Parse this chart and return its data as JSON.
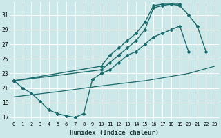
{
  "xlabel": "Humidex (Indice chaleur)",
  "xlim": [
    -0.5,
    23.5
  ],
  "ylim": [
    16.5,
    32.8
  ],
  "yticks": [
    17,
    19,
    21,
    23,
    25,
    27,
    29,
    31
  ],
  "xticks": [
    0,
    1,
    2,
    3,
    4,
    5,
    6,
    7,
    8,
    9,
    10,
    11,
    12,
    13,
    14,
    15,
    16,
    17,
    18,
    19,
    20,
    21,
    22,
    23
  ],
  "bg_color": "#cce8e8",
  "line_color": "#1a6b6b",
  "grid_color": "#ffffff",
  "series": [
    {
      "x": [
        0,
        1,
        2,
        3,
        4,
        5,
        6,
        7,
        8,
        9,
        10,
        11,
        12,
        13,
        14,
        15,
        16,
        17,
        18,
        19,
        20,
        21,
        22,
        23
      ],
      "y": [
        22.0,
        21.0,
        20.3,
        19.2,
        18.0,
        17.5,
        17.2,
        17.0,
        17.5,
        22.2,
        23.0,
        23.5,
        24.5,
        25.5,
        26.0,
        27.0,
        28.0,
        28.5,
        29.0,
        29.5,
        26.0,
        null,
        null,
        null
      ],
      "marker": "D",
      "markersize": 2.0,
      "linewidth": 1.0
    },
    {
      "x": [
        0,
        10,
        11,
        12,
        13,
        14,
        15,
        16,
        17,
        18,
        19,
        20,
        21,
        22
      ],
      "y": [
        22.0,
        24.0,
        25.5,
        26.5,
        27.5,
        28.5,
        30.0,
        32.3,
        32.5,
        32.5,
        32.3,
        31.0,
        29.5,
        26.0
      ],
      "marker": "D",
      "markersize": 2.0,
      "linewidth": 1.0
    },
    {
      "x": [
        0,
        10,
        11,
        12,
        13,
        14,
        15,
        16,
        17,
        18,
        19,
        20,
        21,
        22
      ],
      "y": [
        22.0,
        23.5,
        24.5,
        25.5,
        26.5,
        27.5,
        29.0,
        32.0,
        32.3,
        32.5,
        32.5,
        null,
        null,
        null
      ],
      "marker": "D",
      "markersize": 2.0,
      "linewidth": 1.0
    },
    {
      "x": [
        0,
        5,
        10,
        15,
        20,
        23
      ],
      "y": [
        19.8,
        20.5,
        21.3,
        22.0,
        23.0,
        24.0
      ],
      "marker": null,
      "markersize": 0,
      "linewidth": 0.9
    }
  ]
}
